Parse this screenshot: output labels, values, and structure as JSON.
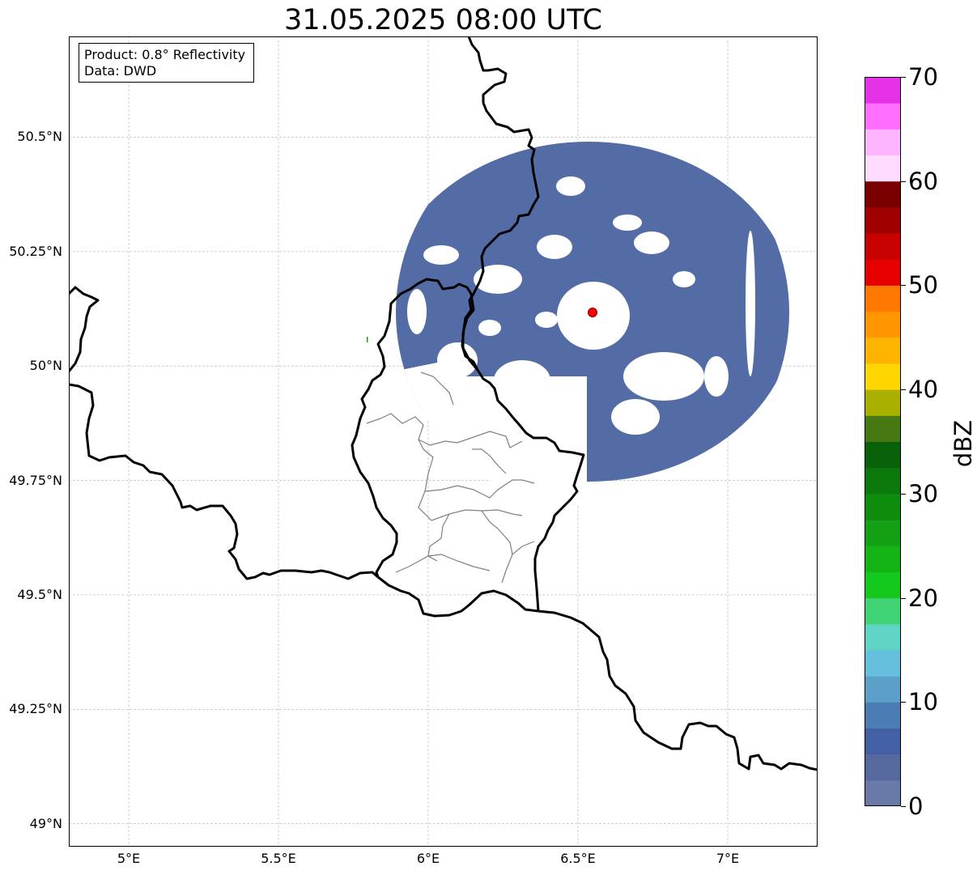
{
  "title": "31.05.2025 08:00 UTC",
  "infobox": {
    "product": "Product: 0.8° Reflectivity",
    "data": "Data: DWD"
  },
  "map": {
    "lon_range": [
      4.8,
      7.3
    ],
    "lat_range": [
      48.95,
      50.72
    ],
    "grid": true,
    "lat_ticks": [
      {
        "value": 50.5,
        "label": "50.5°N"
      },
      {
        "value": 50.25,
        "label": "50.25°N"
      },
      {
        "value": 50.0,
        "label": "50°N"
      },
      {
        "value": 49.75,
        "label": "49.75°N"
      },
      {
        "value": 49.5,
        "label": "49.5°N"
      },
      {
        "value": 49.25,
        "label": "49.25°N"
      },
      {
        "value": 49.0,
        "label": "49°N"
      }
    ],
    "lon_ticks": [
      {
        "value": 5.0,
        "label": "5°E"
      },
      {
        "value": 5.5,
        "label": "5.5°E"
      },
      {
        "value": 6.0,
        "label": "6°E"
      },
      {
        "value": 6.5,
        "label": "6.5°E"
      },
      {
        "value": 7.0,
        "label": "7°E"
      }
    ],
    "radar_site": {
      "lon": 6.548,
      "lat": 50.11,
      "color": "#ff0000"
    },
    "echo_color": "#4a64a0",
    "border_color": "#000000",
    "admin_border_color": "#808080"
  },
  "colorbar": {
    "unit": "dBZ",
    "min": 0,
    "max": 70,
    "step": 2.5,
    "ticks": [
      {
        "value": 70,
        "label": "70"
      },
      {
        "value": 60,
        "label": "60"
      },
      {
        "value": 50,
        "label": "50"
      },
      {
        "value": 40,
        "label": "40"
      },
      {
        "value": 30,
        "label": "30"
      },
      {
        "value": 20,
        "label": "20"
      },
      {
        "value": 10,
        "label": "10"
      },
      {
        "value": 0,
        "label": "0"
      }
    ],
    "colors": [
      "#6a7aa8",
      "#56699e",
      "#4460a4",
      "#4c7cb4",
      "#5aa0c8",
      "#64c0dc",
      "#60d4c4",
      "#40d474",
      "#14c81c",
      "#14b414",
      "#14a014",
      "#0e8c0e",
      "#0a780a",
      "#086008",
      "#467814",
      "#aab000",
      "#ffd700",
      "#ffb400",
      "#ff9600",
      "#ff7800",
      "#e60000",
      "#c80000",
      "#a00000",
      "#7a0000",
      "#ffdcff",
      "#ffb4ff",
      "#ff6eff",
      "#e632e6"
    ]
  }
}
